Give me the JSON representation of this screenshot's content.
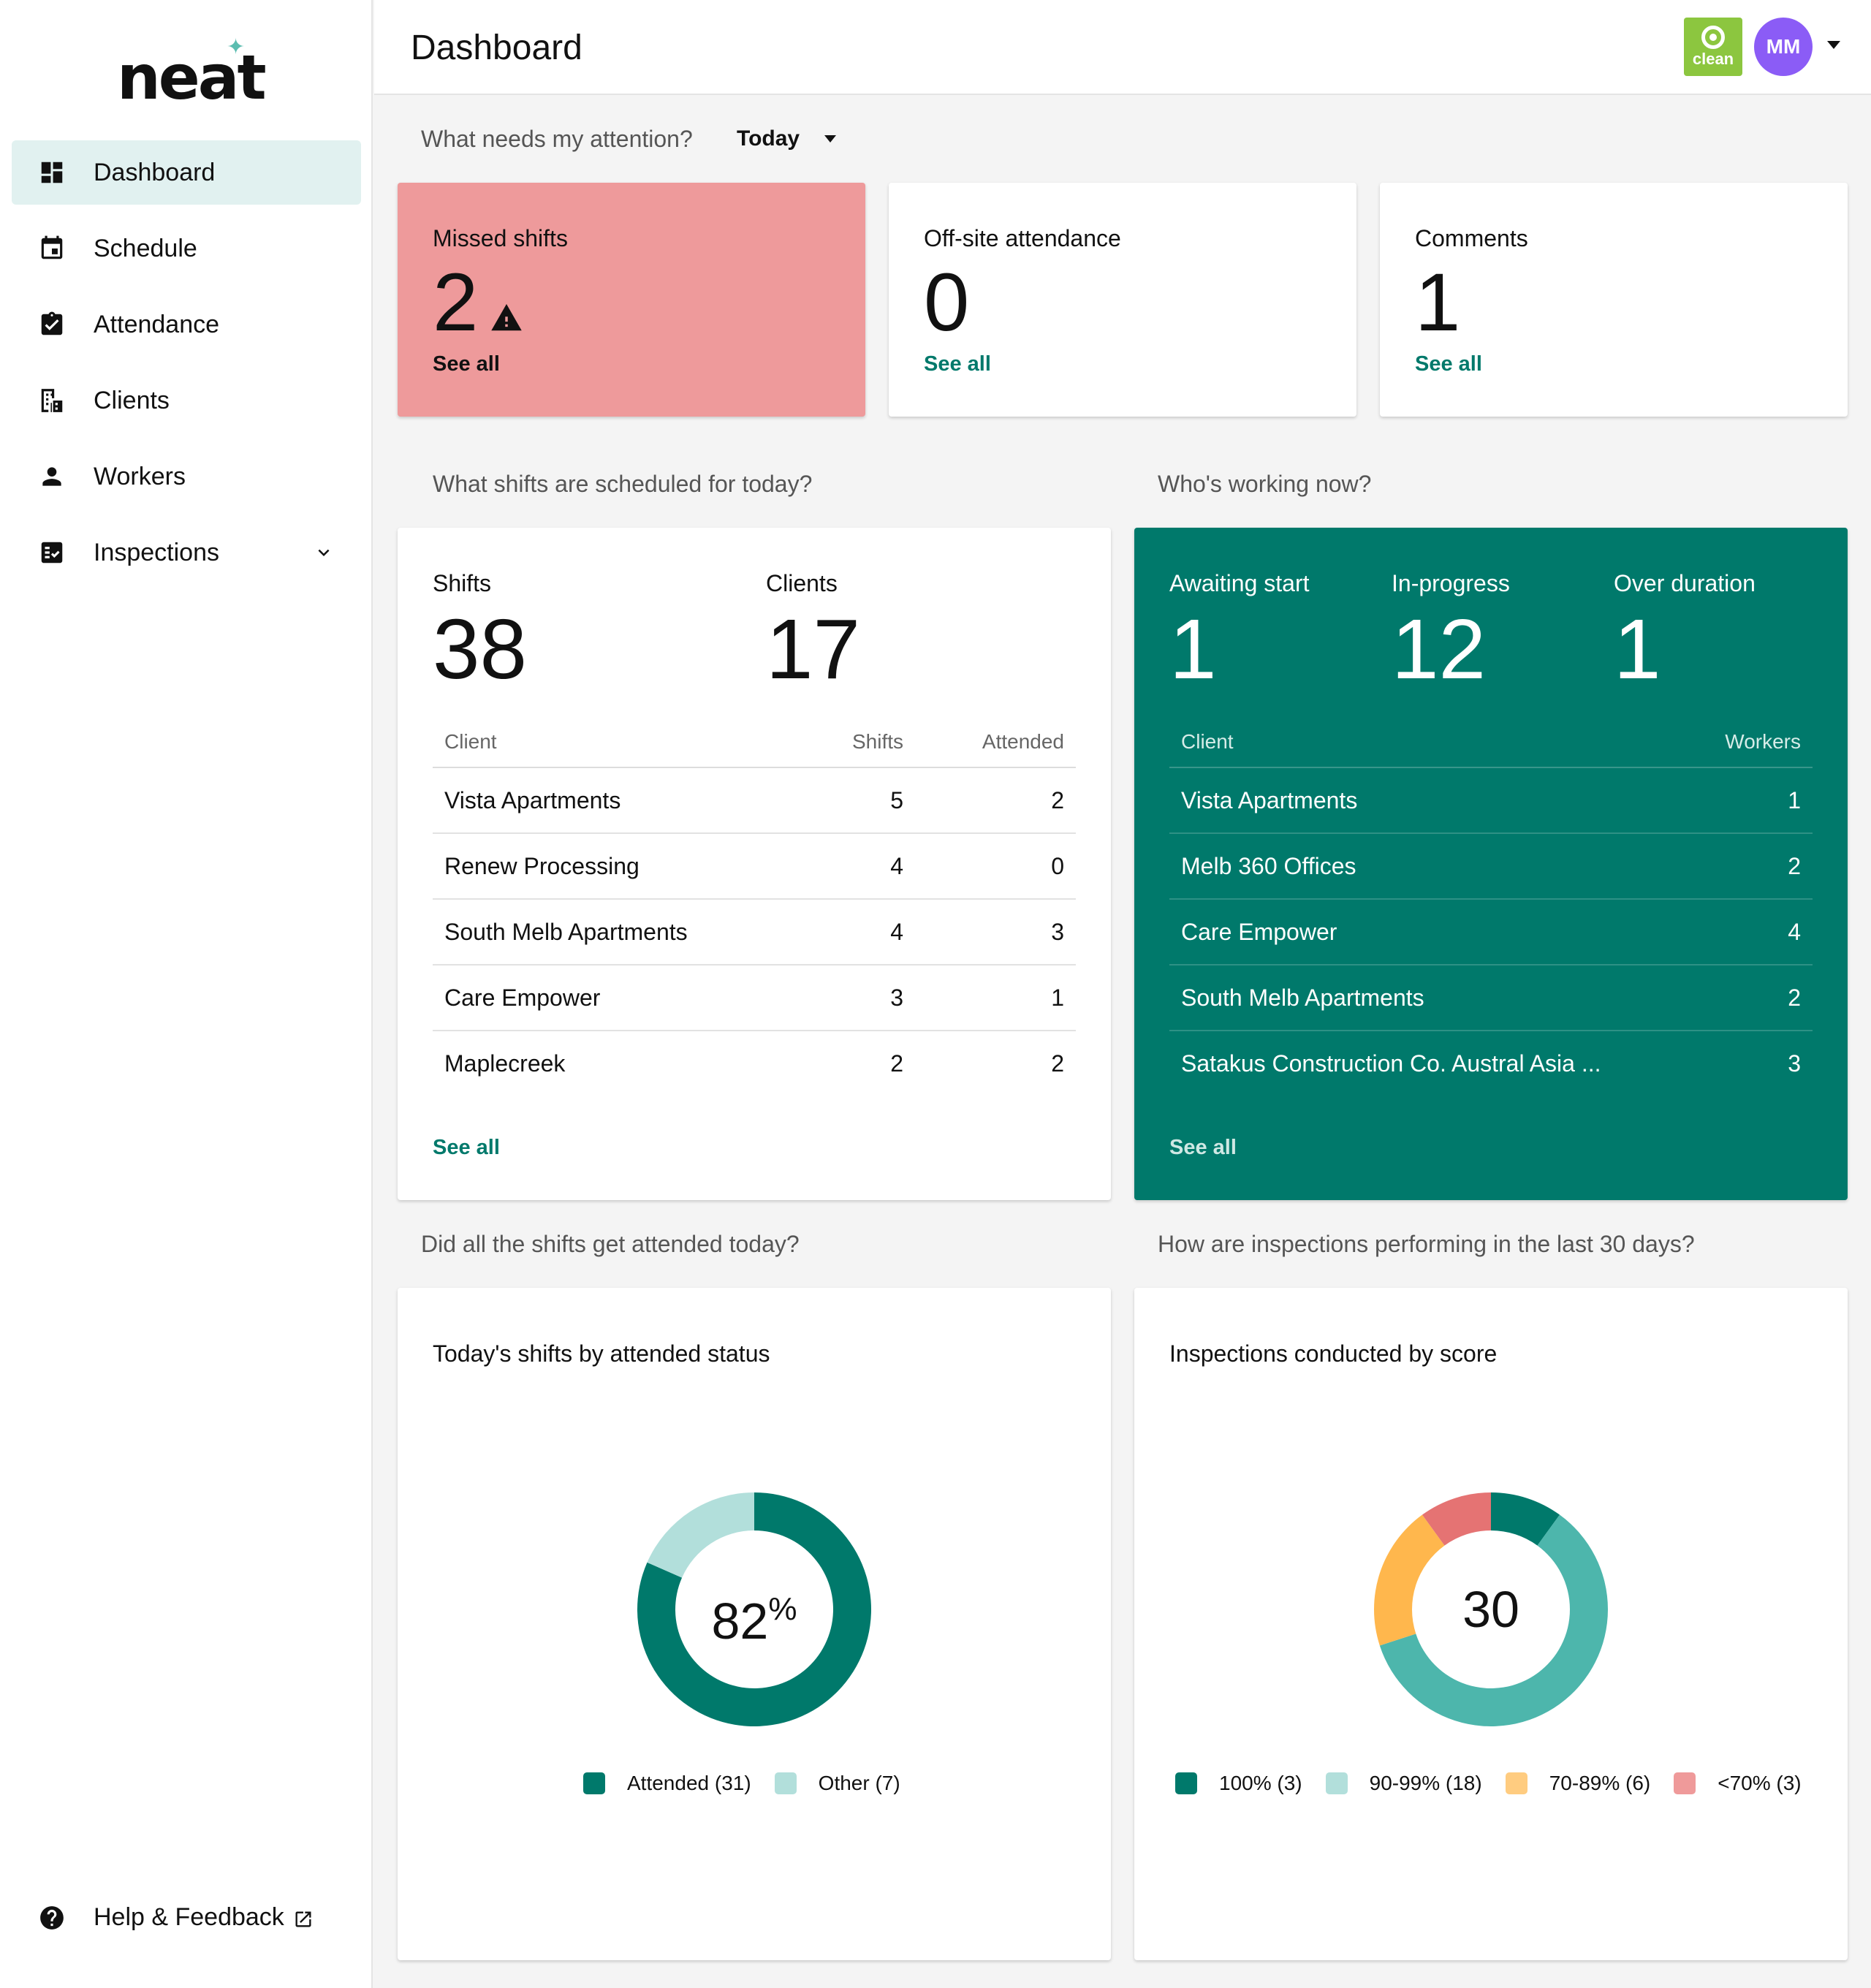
{
  "sidebar": {
    "logo": "neat",
    "items": [
      {
        "label": "Dashboard",
        "active": true
      },
      {
        "label": "Schedule"
      },
      {
        "label": "Attendance"
      },
      {
        "label": "Clients"
      },
      {
        "label": "Workers"
      },
      {
        "label": "Inspections"
      }
    ],
    "help": "Help & Feedback"
  },
  "header": {
    "title": "Dashboard",
    "brand_label": "clean",
    "avatar_initials": "MM"
  },
  "attention": {
    "question": "What needs my attention?",
    "filter": "Today",
    "cards": [
      {
        "title": "Missed shifts",
        "value": "2",
        "link": "See all"
      },
      {
        "title": "Off-site attendance",
        "value": "0",
        "link": "See all"
      },
      {
        "title": "Comments",
        "value": "1",
        "link": "See all"
      }
    ]
  },
  "scheduled": {
    "question": "What shifts are scheduled for today?",
    "shifts_label": "Shifts",
    "shifts_value": "38",
    "clients_label": "Clients",
    "clients_value": "17",
    "columns": [
      "Client",
      "Shifts",
      "Attended"
    ],
    "rows": [
      {
        "client": "Vista Apartments",
        "shifts": "5",
        "attended": "2"
      },
      {
        "client": "Renew Processing",
        "shifts": "4",
        "attended": "0"
      },
      {
        "client": "South Melb Apartments",
        "shifts": "4",
        "attended": "3"
      },
      {
        "client": "Care Empower",
        "shifts": "3",
        "attended": "1"
      },
      {
        "client": "Maplecreek",
        "shifts": "2",
        "attended": "2"
      }
    ],
    "link": "See all"
  },
  "working": {
    "question": "Who's working now?",
    "kpis": [
      {
        "label": "Awaiting start",
        "value": "1"
      },
      {
        "label": "In-progress",
        "value": "12"
      },
      {
        "label": "Over duration",
        "value": "1"
      }
    ],
    "columns": [
      "Client",
      "Workers"
    ],
    "rows": [
      {
        "client": "Vista Apartments",
        "workers": "1"
      },
      {
        "client": "Melb 360 Offices",
        "workers": "2"
      },
      {
        "client": "Care Empower",
        "workers": "4"
      },
      {
        "client": "South Melb Apartments",
        "workers": "2"
      },
      {
        "client": "Satakus Construction Co. Austral Asia ...",
        "workers": "3"
      }
    ],
    "link": "See all"
  },
  "attended": {
    "question": "Did all the shifts get attended today?",
    "title": "Today's shifts by attended status",
    "center_value": "82",
    "center_unit": "%",
    "legend": [
      "Attended (31)",
      "Other (7)"
    ]
  },
  "inspections": {
    "question": "How are inspections performing in the last 30 days?",
    "title": "Inspections conducted by score",
    "center_value": "30",
    "legend": [
      "100% (3)",
      "90-99% (18)",
      "70-89% (6)",
      "<70% (3)"
    ]
  },
  "colors": {
    "teal_dark": "#00796b",
    "teal_light": "#b2dfdb",
    "teal_mid": "#4db6ac",
    "orange": "#ffb74d",
    "red": "#e57373",
    "alert_bg": "#ee9a9b",
    "avatar": "#8b5cf6",
    "brand": "#8cc63f"
  },
  "chart_data": [
    {
      "type": "pie",
      "title": "Today's shifts by attended status",
      "categories": [
        "Attended",
        "Other"
      ],
      "values": [
        31,
        7
      ],
      "colors": [
        "#00796b",
        "#b2dfdb"
      ]
    },
    {
      "type": "pie",
      "title": "Inspections conducted by score",
      "categories": [
        "100%",
        "90-99%",
        "70-89%",
        "<70%"
      ],
      "values": [
        3,
        18,
        6,
        3
      ],
      "colors": [
        "#00796b",
        "#4db6ac",
        "#ffb74d",
        "#e57373"
      ]
    }
  ]
}
